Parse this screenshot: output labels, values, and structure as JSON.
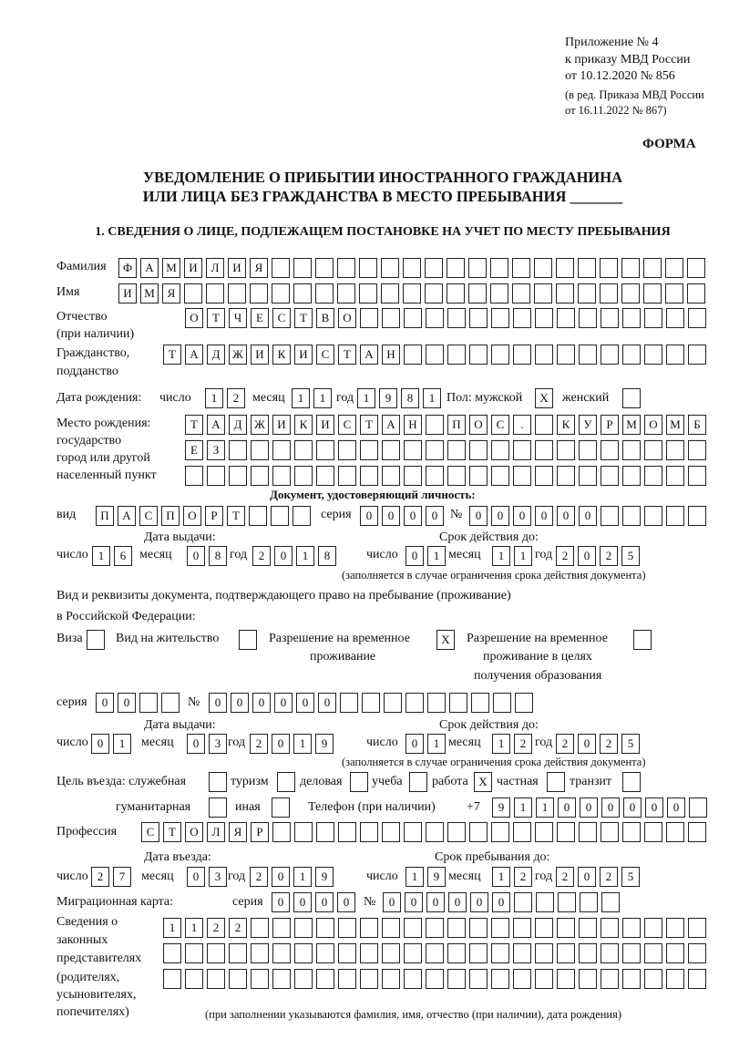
{
  "header": {
    "appendix": "Приложение № 4",
    "order": "к приказу МВД России",
    "order_date": "от 10.12.2020 № 856",
    "edition": "(в ред. Приказа МВД России",
    "edition_date": "от 16.11.2022 № 867)",
    "form_label": "ФОРМА",
    "title_line1": "УВЕДОМЛЕНИЕ О ПРИБЫТИИ ИНОСТРАННОГО ГРАЖДАНИНА",
    "title_line2": "ИЛИ ЛИЦА БЕЗ ГРАЖДАНСТВА В МЕСТО ПРЕБЫВАНИЯ _______",
    "section1": "1. СВЕДЕНИЯ О ЛИЦЕ, ПОДЛЕЖАЩЕМ ПОСТАНОВКЕ НА УЧЕТ ПО МЕСТУ ПРЕБЫВАНИЯ"
  },
  "labels": {
    "surname": "Фамилия",
    "name": "Имя",
    "patronymic": "Отчество",
    "patronymic_note": "(при наличии)",
    "citizenship1": "Гражданство,",
    "citizenship2": "подданство",
    "birth_date": "Дата рождения:",
    "day": "число",
    "month": "месяц",
    "year": "год",
    "sex_male": "Пол: мужской",
    "sex_female": "женский",
    "birth_place1": "Место рождения:",
    "birth_place2": "государство",
    "birth_place3": "город или другой",
    "birth_place4": "населенный пункт",
    "id_doc": "Документ, удостоверяющий личность:",
    "doc_type": "вид",
    "series": "серия",
    "number": "№",
    "issue_date": "Дата выдачи:",
    "valid_until": "Срок действия до:",
    "validity_note": "(заполняется в случае ограничения срока действия документа)",
    "residence_doc1": "Вид и реквизиты документа, подтверждающего право на пребывание (проживание)",
    "residence_doc2": "в Российской Федерации:",
    "visa": "Виза",
    "residence_permit": "Вид на жительство",
    "temp_permit1": "Разрешение на временное",
    "temp_permit2": "проживание",
    "edu_permit1": "Разрешение на временное",
    "edu_permit2": "проживание в целях",
    "edu_permit3": "получения образования",
    "purpose": "Цель въезда: служебная",
    "tourism": "туризм",
    "business": "деловая",
    "study": "учеба",
    "work": "работа",
    "private": "частная",
    "transit": "транзит",
    "humanitarian": "гуманитарная",
    "other": "иная",
    "phone": "Телефон (при наличии)",
    "phone_prefix": "+7",
    "profession": "Профессия",
    "entry_date": "Дата въезда:",
    "stay_until": "Срок пребывания до:",
    "migration_card": "Миграционная карта:",
    "reps1": "Сведения о",
    "reps2": "законных",
    "reps3": "представителях",
    "reps4": "(родителях,",
    "reps5": "усыновителях,",
    "reps6": "попечителях)",
    "reps_note": "(при заполнении указываются фамилия, имя, отчество (при наличии), дата рождения)"
  },
  "fields": {
    "surname": "ФАМИЛИЯ",
    "name": "ИМЯ",
    "patronymic": "ОТЧЕСТВО",
    "citizenship": "ТАДЖИКИСТАН",
    "birth_date": {
      "day": "12",
      "month": "11",
      "year": "1981"
    },
    "sex": {
      "male": "X",
      "female": ""
    },
    "birth_place": [
      "ТАДЖИКИСТАН ПОС. КУРМОМБ",
      "ЕЗ",
      ""
    ],
    "id_doc": {
      "type": "ПАСПОРТ",
      "series": "0000",
      "number": "000000",
      "issue": {
        "day": "16",
        "month": "08",
        "year": "2018"
      },
      "valid": {
        "day": "01",
        "month": "11",
        "year": "2025"
      }
    },
    "residence_doc": {
      "visa": "",
      "residence_permit": "",
      "temp_permit": "X",
      "edu_permit": "",
      "series": "00",
      "number": "000000",
      "issue": {
        "day": "01",
        "month": "03",
        "year": "2019"
      },
      "valid": {
        "day": "01",
        "month": "12",
        "year": "2025"
      }
    },
    "purpose": {
      "official": "",
      "tourism": "",
      "business": "",
      "study": "",
      "work": "X",
      "private": "",
      "transit": "",
      "humanitarian": "",
      "other": ""
    },
    "phone": "911000000",
    "profession": "СТОЛЯР",
    "entry": {
      "day": "27",
      "month": "03",
      "year": "2019"
    },
    "stay_until": {
      "day": "19",
      "month": "12",
      "year": "2025"
    },
    "migration_card": {
      "series": "0000",
      "number": "000000"
    },
    "representatives": [
      "1122",
      "",
      ""
    ]
  }
}
